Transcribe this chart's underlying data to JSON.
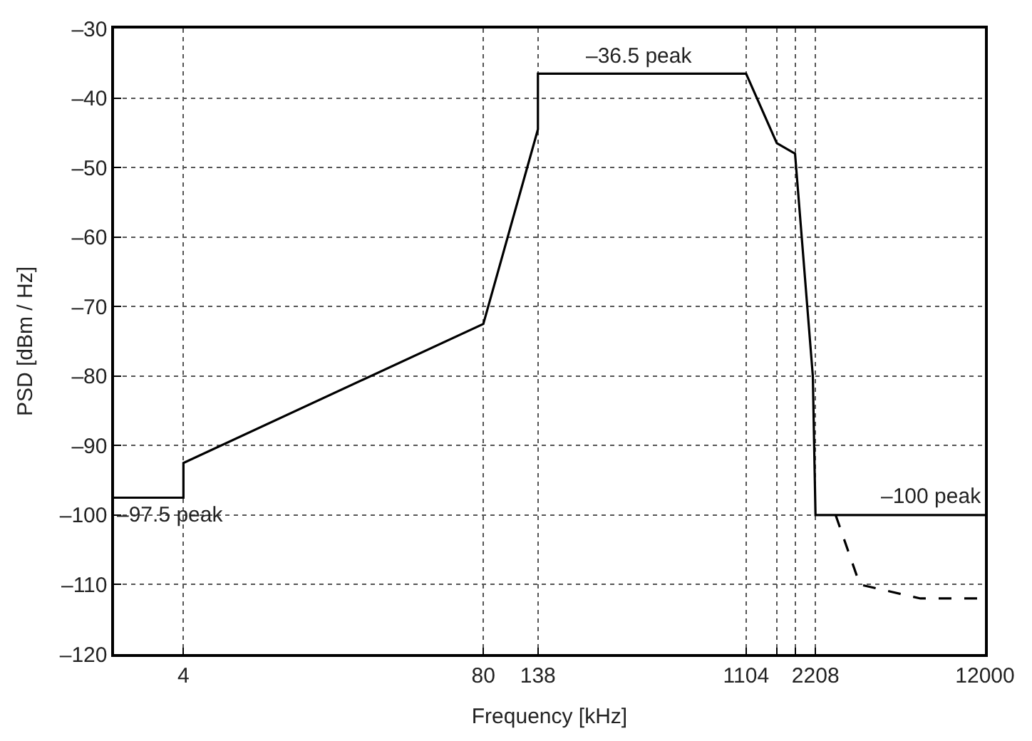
{
  "chart_data": {
    "type": "line",
    "xlabel": "Frequency [kHz]",
    "ylabel": "PSD [dBm / Hz]",
    "log": "x",
    "grid": true,
    "marker": "none",
    "xlim": [
      2,
      12000
    ],
    "xticks": [
      4,
      80,
      138,
      1104,
      {
        "value": 1500,
        "label": null
      },
      {
        "value": 1800,
        "label": null
      },
      2208,
      12000
    ],
    "ylim": [
      -120,
      -30
    ],
    "yticks": [
      {
        "value": -30,
        "label": "–30"
      },
      {
        "value": -40,
        "label": "–40"
      },
      {
        "value": -50,
        "label": "–50"
      },
      {
        "value": -60,
        "label": "–60"
      },
      {
        "value": -70,
        "label": "–70"
      },
      {
        "value": -80,
        "label": "–80"
      },
      {
        "value": -90,
        "label": "–90"
      },
      {
        "value": -100,
        "label": "–100"
      },
      {
        "value": -110,
        "label": "–110"
      },
      {
        "value": -120,
        "label": "–120"
      }
    ],
    "series": [
      {
        "color": "#000000",
        "line_style": "solid",
        "x": [
          2,
          4,
          4,
          80,
          138,
          138,
          1104,
          1500,
          1800,
          2150,
          2208,
          12000
        ],
        "values": [
          -97.5,
          -97.5,
          -92.5,
          -72.5,
          -44.5,
          -36.5,
          -36.5,
          -46.5,
          -48,
          -80,
          -100,
          -100
        ]
      },
      {
        "color": "#000000",
        "line_style": "dashed",
        "x": [
          2700,
          3440,
          6300,
          12000
        ],
        "values": [
          -100,
          -110,
          -112,
          -112
        ]
      }
    ],
    "annotations": [
      {
        "text": "–36.5 peak",
        "x": 382,
        "y": -36.5
      },
      {
        "text": "–97.5 peak",
        "x": 2,
        "y": -97.5
      },
      {
        "text": "–100 peak",
        "x": 12000,
        "y": -100
      }
    ]
  }
}
